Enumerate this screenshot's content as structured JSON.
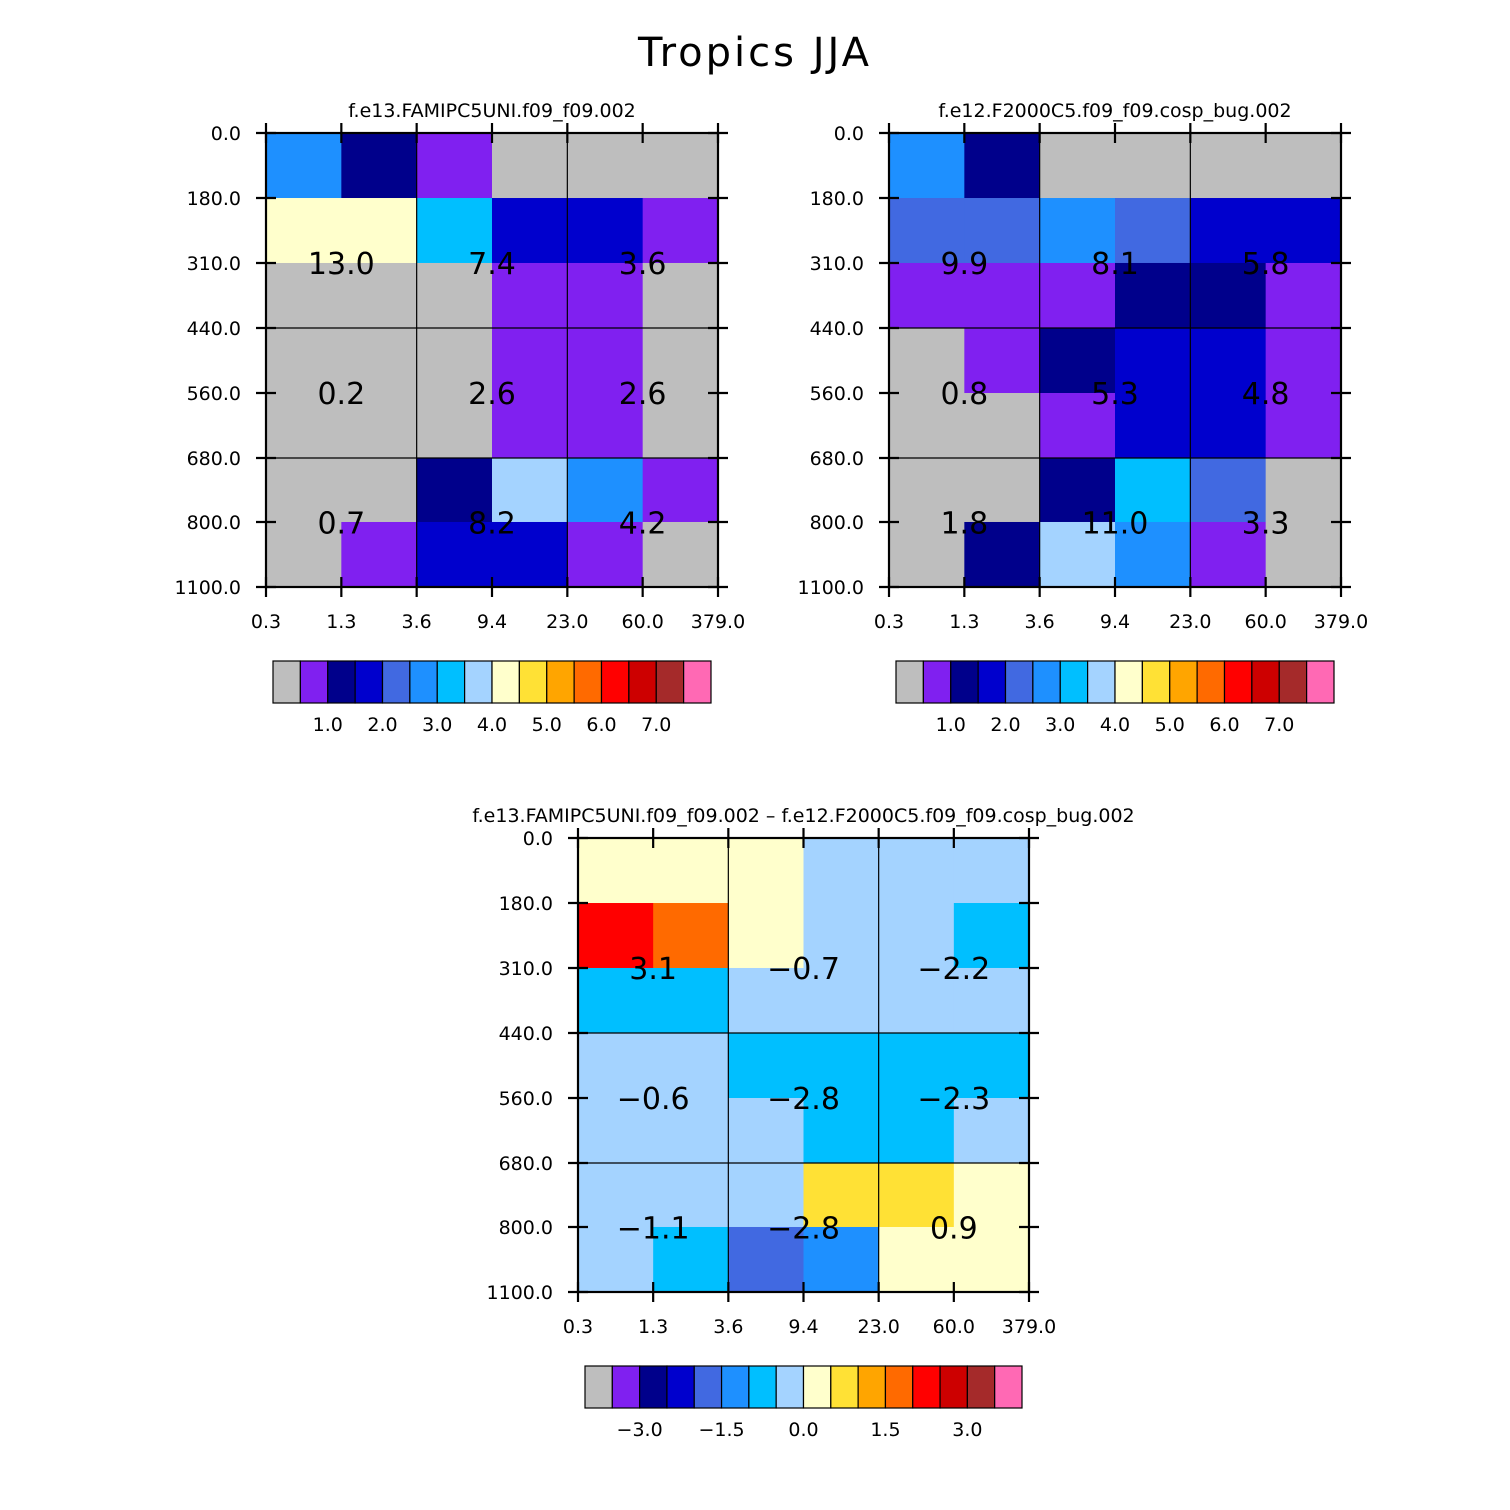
{
  "figure_title": "Tropics JJA",
  "chart_data": [
    {
      "type": "heatmap",
      "title": "f.e13.FAMIPC5UNI.f09_f09.002",
      "x_ticks": [
        "0.3",
        "1.3",
        "3.6",
        "9.4",
        "23.0",
        "60.0",
        "379.0"
      ],
      "y_ticks": [
        "0.0",
        "180.0",
        "310.0",
        "440.0",
        "560.0",
        "680.0",
        "800.0",
        "1100.0"
      ],
      "grid": true,
      "cells": [
        [
          "#1e90ff",
          "#00008b",
          "#8020f0",
          "#bebebe",
          "#bebebe",
          "#bebebe"
        ],
        [
          "#ffffcc",
          "#ffffcc",
          "#00bfff",
          "#0000cd",
          "#0000cd",
          "#8020f0"
        ],
        [
          "#bebebe",
          "#bebebe",
          "#bebebe",
          "#8020f0",
          "#8020f0",
          "#bebebe"
        ],
        [
          "#bebebe",
          "#bebebe",
          "#bebebe",
          "#8020f0",
          "#8020f0",
          "#bebebe"
        ],
        [
          "#bebebe",
          "#bebebe",
          "#bebebe",
          "#8020f0",
          "#8020f0",
          "#bebebe"
        ],
        [
          "#bebebe",
          "#bebebe",
          "#00008b",
          "#a4d3ff",
          "#1e90ff",
          "#8020f0"
        ],
        [
          "#bebebe",
          "#8020f0",
          "#0000cd",
          "#0000cd",
          "#8020f0",
          "#bebebe"
        ]
      ],
      "block_labels": [
        [
          "13.0",
          "7.4",
          "3.6"
        ],
        [
          "0.2",
          "2.6",
          "2.6"
        ],
        [
          "0.7",
          "8.2",
          "4.2"
        ]
      ],
      "colorbar": {
        "colors": [
          "#bebebe",
          "#8020f0",
          "#00008b",
          "#0000cd",
          "#4169e1",
          "#1e90ff",
          "#00bfff",
          "#a4d3ff",
          "#ffffcc",
          "#ffe135",
          "#ffa500",
          "#ff6a00",
          "#ff0000",
          "#cd0000",
          "#a52a2a",
          "#ff69b4"
        ],
        "labels": [
          "1.0",
          "2.0",
          "3.0",
          "4.0",
          "5.0",
          "6.0",
          "7.0"
        ],
        "label_boundaries": [
          2,
          4,
          6,
          8,
          10,
          12,
          14
        ]
      }
    },
    {
      "type": "heatmap",
      "title": "f.e12.F2000C5.f09_f09.cosp_bug.002",
      "x_ticks": [
        "0.3",
        "1.3",
        "3.6",
        "9.4",
        "23.0",
        "60.0",
        "379.0"
      ],
      "y_ticks": [
        "0.0",
        "180.0",
        "310.0",
        "440.0",
        "560.0",
        "680.0",
        "800.0",
        "1100.0"
      ],
      "grid": true,
      "cells": [
        [
          "#1e90ff",
          "#00008b",
          "#bebebe",
          "#bebebe",
          "#bebebe",
          "#bebebe"
        ],
        [
          "#4169e1",
          "#4169e1",
          "#1e90ff",
          "#4169e1",
          "#0000cd",
          "#0000cd"
        ],
        [
          "#8020f0",
          "#8020f0",
          "#8020f0",
          "#00008b",
          "#00008b",
          "#8020f0"
        ],
        [
          "#bebebe",
          "#8020f0",
          "#00008b",
          "#0000cd",
          "#0000cd",
          "#8020f0"
        ],
        [
          "#bebebe",
          "#bebebe",
          "#8020f0",
          "#0000cd",
          "#0000cd",
          "#8020f0"
        ],
        [
          "#bebebe",
          "#bebebe",
          "#00008b",
          "#00bfff",
          "#4169e1",
          "#bebebe"
        ],
        [
          "#bebebe",
          "#00008b",
          "#a4d3ff",
          "#1e90ff",
          "#8020f0",
          "#bebebe"
        ]
      ],
      "block_labels": [
        [
          "9.9",
          "8.1",
          "5.8"
        ],
        [
          "0.8",
          "5.3",
          "4.8"
        ],
        [
          "1.8",
          "11.0",
          "3.3"
        ]
      ],
      "colorbar": {
        "colors": [
          "#bebebe",
          "#8020f0",
          "#00008b",
          "#0000cd",
          "#4169e1",
          "#1e90ff",
          "#00bfff",
          "#a4d3ff",
          "#ffffcc",
          "#ffe135",
          "#ffa500",
          "#ff6a00",
          "#ff0000",
          "#cd0000",
          "#a52a2a",
          "#ff69b4"
        ],
        "labels": [
          "1.0",
          "2.0",
          "3.0",
          "4.0",
          "5.0",
          "6.0",
          "7.0"
        ],
        "label_boundaries": [
          2,
          4,
          6,
          8,
          10,
          12,
          14
        ]
      }
    },
    {
      "type": "heatmap",
      "title": "f.e13.FAMIPC5UNI.f09_f09.002 – f.e12.F2000C5.f09_f09.cosp_bug.002",
      "x_ticks": [
        "0.3",
        "1.3",
        "3.6",
        "9.4",
        "23.0",
        "60.0",
        "379.0"
      ],
      "y_ticks": [
        "0.0",
        "180.0",
        "310.0",
        "440.0",
        "560.0",
        "680.0",
        "800.0",
        "1100.0"
      ],
      "grid": true,
      "cells": [
        [
          "#ffffcc",
          "#ffffcc",
          "#ffffcc",
          "#a4d3ff",
          "#a4d3ff",
          "#a4d3ff"
        ],
        [
          "#ff0000",
          "#ff6a00",
          "#ffffcc",
          "#a4d3ff",
          "#a4d3ff",
          "#00bfff"
        ],
        [
          "#00bfff",
          "#00bfff",
          "#a4d3ff",
          "#a4d3ff",
          "#a4d3ff",
          "#a4d3ff"
        ],
        [
          "#a4d3ff",
          "#a4d3ff",
          "#00bfff",
          "#00bfff",
          "#00bfff",
          "#00bfff"
        ],
        [
          "#a4d3ff",
          "#a4d3ff",
          "#a4d3ff",
          "#00bfff",
          "#00bfff",
          "#a4d3ff"
        ],
        [
          "#a4d3ff",
          "#a4d3ff",
          "#a4d3ff",
          "#ffe135",
          "#ffe135",
          "#ffffcc"
        ],
        [
          "#a4d3ff",
          "#00bfff",
          "#4169e1",
          "#1e90ff",
          "#ffffcc",
          "#ffffcc"
        ]
      ],
      "block_labels": [
        [
          "3.1",
          "−0.7",
          "−2.2"
        ],
        [
          "−0.6",
          "−2.8",
          "−2.3"
        ],
        [
          "−1.1",
          "−2.8",
          "0.9"
        ]
      ],
      "colorbar": {
        "colors": [
          "#bebebe",
          "#8020f0",
          "#00008b",
          "#0000cd",
          "#4169e1",
          "#1e90ff",
          "#00bfff",
          "#a4d3ff",
          "#ffffcc",
          "#ffe135",
          "#ffa500",
          "#ff6a00",
          "#ff0000",
          "#cd0000",
          "#a52a2a",
          "#ff69b4"
        ],
        "labels": [
          "−3.0",
          "−1.5",
          "0.0",
          "1.5",
          "3.0"
        ],
        "label_boundaries": [
          2,
          5,
          8,
          11,
          14
        ]
      }
    }
  ]
}
